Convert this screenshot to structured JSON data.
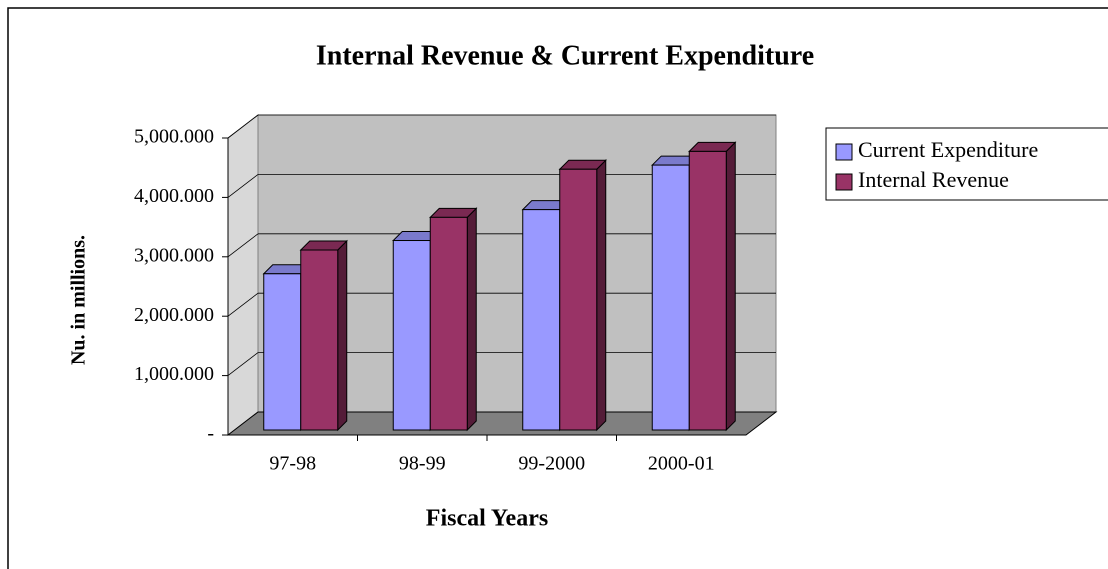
{
  "chart_data": {
    "type": "bar3d",
    "title": "Internal Revenue & Current Expenditure",
    "x_label": "Fiscal Years",
    "y_label": "Nu. in millions.",
    "categories": [
      "97-98",
      "98-99",
      "99-2000",
      "2000-01"
    ],
    "series": [
      {
        "name": "Current Expenditure",
        "color": "#9999ff",
        "values": [
          2630,
          3190,
          3710,
          4460
        ]
      },
      {
        "name": "Internal Revenue",
        "color": "#993366",
        "values": [
          3030,
          3580,
          4390,
          4690
        ]
      }
    ],
    "ylim": [
      0,
      5000
    ],
    "yticks": [
      {
        "value": 0,
        "label": "-"
      },
      {
        "value": 1000,
        "label": "1,000.000"
      },
      {
        "value": 2000,
        "label": "2,000.000"
      },
      {
        "value": 3000,
        "label": "3,000.000"
      },
      {
        "value": 4000,
        "label": "4,000.000"
      },
      {
        "value": 5000,
        "label": "5,000.000"
      }
    ],
    "grid": true,
    "legend": "right"
  }
}
